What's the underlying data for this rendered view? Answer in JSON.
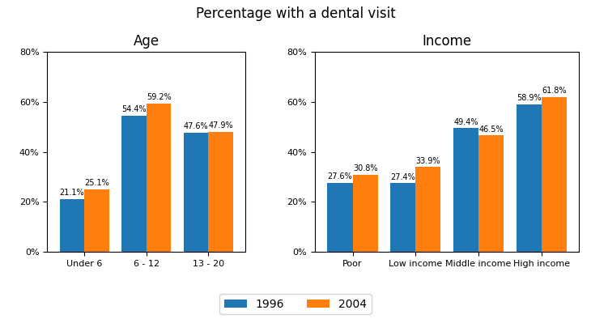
{
  "title": "Percentage with a dental visit",
  "legend": "lower center",
  "chart_data": [
    {
      "type": "bar",
      "title": "Age",
      "categories": [
        "Under 6",
        "6 - 12",
        "13 - 20"
      ],
      "series": [
        {
          "name": "1996",
          "values": [
            21.1,
            54.4,
            47.6
          ],
          "value_labels": [
            "21.1%",
            "54.4%",
            "47.6%"
          ]
        },
        {
          "name": "2004",
          "values": [
            25.1,
            59.2,
            47.9
          ],
          "value_labels": [
            "25.1%",
            "59.2%",
            "47.9%"
          ]
        }
      ],
      "ylim": [
        0,
        80
      ],
      "yticks": [
        {
          "value": 0,
          "label": "0%"
        },
        {
          "value": 20,
          "label": "20%"
        },
        {
          "value": 40,
          "label": "40%"
        },
        {
          "value": 60,
          "label": "60%"
        },
        {
          "value": 80,
          "label": "80%"
        }
      ],
      "grid": false,
      "data_labels": true
    },
    {
      "type": "bar",
      "title": "Income",
      "categories": [
        "Poor",
        "Low income",
        "Middle income",
        "High income"
      ],
      "series": [
        {
          "name": "1996",
          "values": [
            27.6,
            27.4,
            49.4,
            58.9
          ],
          "value_labels": [
            "27.6%",
            "27.4%",
            "49.4%",
            "58.9%"
          ]
        },
        {
          "name": "2004",
          "values": [
            30.8,
            33.9,
            46.5,
            61.8
          ],
          "value_labels": [
            "30.8%",
            "33.9%",
            "46.5%",
            "61.8%"
          ]
        }
      ],
      "ylim": [
        0,
        80
      ],
      "yticks": [
        {
          "value": 0,
          "label": "0%"
        },
        {
          "value": 20,
          "label": "20%"
        },
        {
          "value": 40,
          "label": "40%"
        },
        {
          "value": 60,
          "label": "60%"
        },
        {
          "value": 80,
          "label": "80%"
        }
      ],
      "grid": false,
      "data_labels": true
    }
  ]
}
